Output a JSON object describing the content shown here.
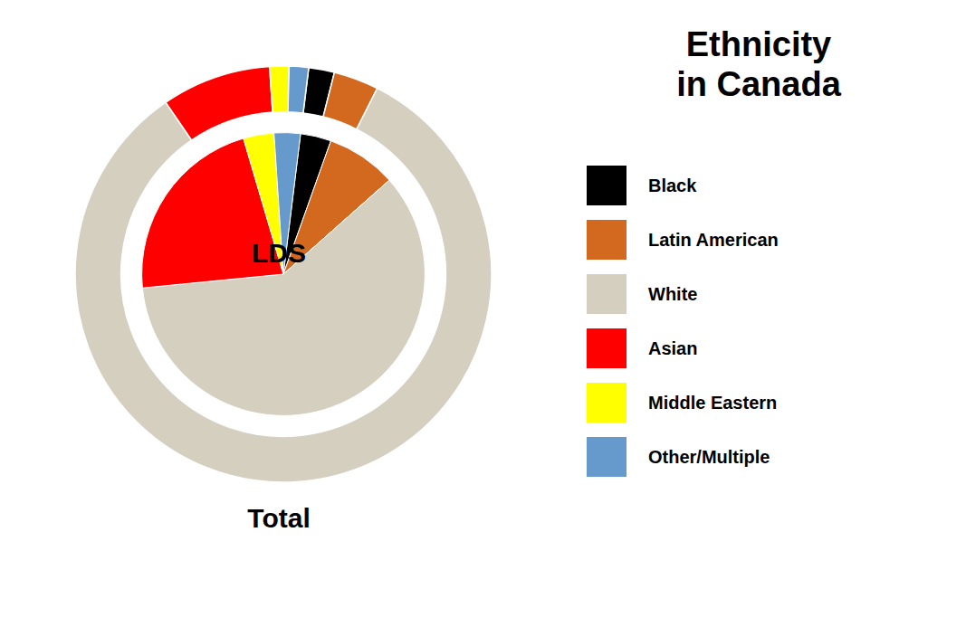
{
  "chart_data": {
    "type": "pie",
    "title": "Ethnicity\nin Canada",
    "categories": [
      "Black",
      "Latin American",
      "White",
      "Asian",
      "Middle Eastern",
      "Other/Multiple"
    ],
    "colors": [
      "#000000",
      "#d2691e",
      "#d5cfc0",
      "#ff0000",
      "#ffff00",
      "#6699cc"
    ],
    "series": [
      {
        "name": "Total",
        "values": [
          2.0,
          3.5,
          83.0,
          8.5,
          1.5,
          1.5
        ]
      },
      {
        "name": "LDS",
        "values": [
          3.5,
          8.0,
          60.0,
          22.0,
          3.5,
          3.0
        ]
      }
    ],
    "legend": "right"
  }
}
